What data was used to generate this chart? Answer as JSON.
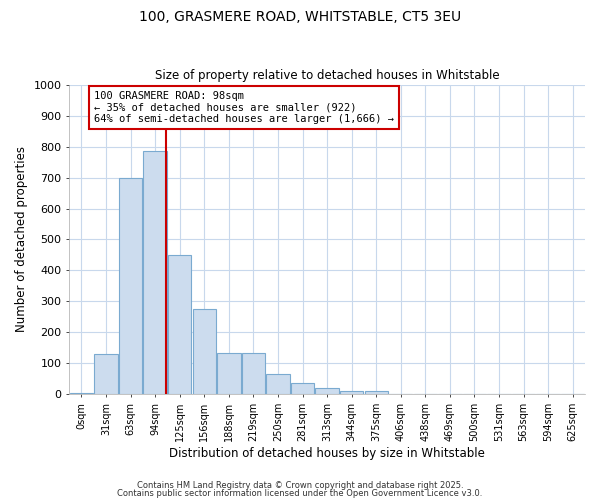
{
  "title_line1": "100, GRASMERE ROAD, WHITSTABLE, CT5 3EU",
  "title_line2": "Size of property relative to detached houses in Whitstable",
  "xlabel": "Distribution of detached houses by size in Whitstable",
  "ylabel": "Number of detached properties",
  "bar_color": "#ccdcee",
  "bar_edge_color": "#7aaad0",
  "vline_color": "#cc0000",
  "vline_x_index": 3,
  "annotation_text": "100 GRASMERE ROAD: 98sqm\n← 35% of detached houses are smaller (922)\n64% of semi-detached houses are larger (1,666) →",
  "annotation_box_color": "#ffffff",
  "annotation_box_edgecolor": "#cc0000",
  "categories": [
    "0sqm",
    "31sqm",
    "63sqm",
    "94sqm",
    "125sqm",
    "156sqm",
    "188sqm",
    "219sqm",
    "250sqm",
    "281sqm",
    "313sqm",
    "344sqm",
    "375sqm",
    "406sqm",
    "438sqm",
    "469sqm",
    "500sqm",
    "531sqm",
    "563sqm",
    "594sqm",
    "625sqm"
  ],
  "values": [
    5,
    130,
    700,
    785,
    450,
    275,
    133,
    133,
    65,
    38,
    22,
    10,
    12,
    0,
    0,
    0,
    0,
    0,
    0,
    0,
    0
  ],
  "ylim": [
    0,
    1000
  ],
  "yticks": [
    0,
    100,
    200,
    300,
    400,
    500,
    600,
    700,
    800,
    900,
    1000
  ],
  "fig_background_color": "#ffffff",
  "ax_background_color": "#ffffff",
  "grid_color": "#c8d8ec",
  "footer_line1": "Contains HM Land Registry data © Crown copyright and database right 2025.",
  "footer_line2": "Contains public sector information licensed under the Open Government Licence v3.0."
}
